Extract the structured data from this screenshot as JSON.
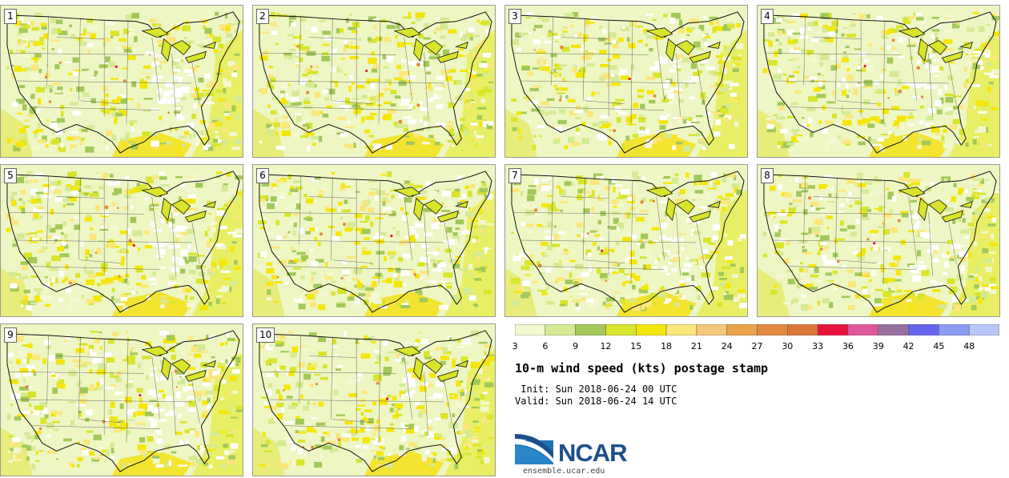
{
  "title": "10-m wind speed (kts) postage stamp",
  "init": " Init: Sun 2018-06-24 00 UTC",
  "valid": "Valid: Sun 2018-06-24 14 UTC",
  "logo": {
    "name": "NCAR",
    "url": "ensemble.ucar.edu"
  },
  "members": [
    "1",
    "2",
    "3",
    "4",
    "5",
    "6",
    "7",
    "8",
    "9",
    "10"
  ],
  "colorbar": {
    "ticks": [
      "3",
      "6",
      "9",
      "12",
      "15",
      "18",
      "21",
      "24",
      "27",
      "30",
      "33",
      "36",
      "39",
      "42",
      "45",
      "48"
    ],
    "bins": [
      {
        "from": 3,
        "to": 6,
        "color": "#f3f8d0"
      },
      {
        "from": 6,
        "to": 9,
        "color": "#d6ea94"
      },
      {
        "from": 9,
        "to": 12,
        "color": "#a3c85a"
      },
      {
        "from": 12,
        "to": 15,
        "color": "#d8e52a"
      },
      {
        "from": 15,
        "to": 18,
        "color": "#f5e60a"
      },
      {
        "from": 18,
        "to": 21,
        "color": "#fbe77a"
      },
      {
        "from": 21,
        "to": 24,
        "color": "#f5c97a"
      },
      {
        "from": 24,
        "to": 27,
        "color": "#eaa24c"
      },
      {
        "from": 27,
        "to": 30,
        "color": "#e38a3e"
      },
      {
        "from": 30,
        "to": 33,
        "color": "#db7638"
      },
      {
        "from": 33,
        "to": 36,
        "color": "#e8123c"
      },
      {
        "from": 36,
        "to": 39,
        "color": "#e0579c"
      },
      {
        "from": 39,
        "to": 42,
        "color": "#96709f"
      },
      {
        "from": 42,
        "to": 45,
        "color": "#6464ec"
      },
      {
        "from": 45,
        "to": 48,
        "color": "#8a9cf4"
      },
      {
        "from": 48,
        "to": 51,
        "color": "#b7c8f8"
      }
    ]
  }
}
